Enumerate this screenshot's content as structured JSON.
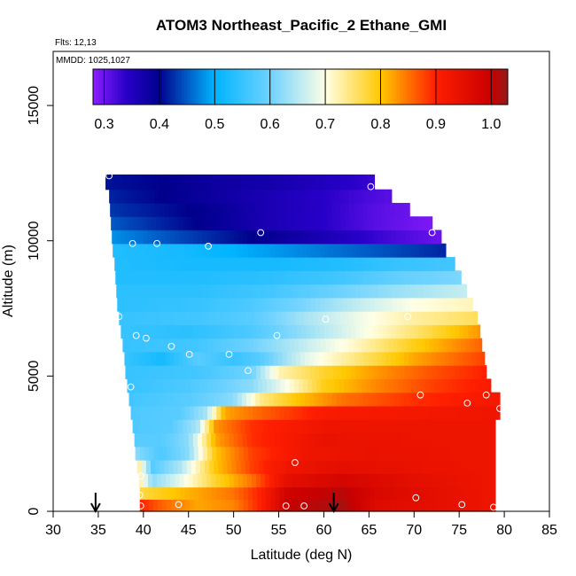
{
  "chart_data": {
    "type": "heatmap",
    "title": "ATOM3 Northeast_Pacific_2 Ethane_GMI",
    "flights_label": "Flts: 12,13",
    "date_label": "MMDD: 1025,1027",
    "xlabel": "Latitude (deg N)",
    "ylabel": "Altitude (m)",
    "xlim": [
      30,
      85
    ],
    "ylim": [
      0,
      17000
    ],
    "x_ticks": [
      "30",
      "35",
      "40",
      "45",
      "50",
      "55",
      "60",
      "65",
      "70",
      "75",
      "80",
      "85"
    ],
    "y_ticks": [
      "0",
      "5000",
      "10000",
      "15000"
    ],
    "colorbar": {
      "range": [
        0.28,
        1.03
      ],
      "ticks": [
        "0.3",
        "0.4",
        "0.5",
        "0.6",
        "0.7",
        "0.8",
        "0.9",
        "1.0"
      ],
      "placement": "top"
    },
    "grid": false,
    "observations": [
      {
        "lat": 36.2,
        "alt": 12400
      },
      {
        "lat": 65.2,
        "alt": 12000
      },
      {
        "lat": 38.8,
        "alt": 9900
      },
      {
        "lat": 41.5,
        "alt": 9900
      },
      {
        "lat": 47.2,
        "alt": 9800
      },
      {
        "lat": 53.0,
        "alt": 10300
      },
      {
        "lat": 72.0,
        "alt": 10300
      },
      {
        "lat": 37.3,
        "alt": 7200
      },
      {
        "lat": 39.2,
        "alt": 6500
      },
      {
        "lat": 40.3,
        "alt": 6400
      },
      {
        "lat": 43.1,
        "alt": 6100
      },
      {
        "lat": 45.1,
        "alt": 5800
      },
      {
        "lat": 49.5,
        "alt": 5800
      },
      {
        "lat": 54.8,
        "alt": 6500
      },
      {
        "lat": 60.2,
        "alt": 7100
      },
      {
        "lat": 69.3,
        "alt": 7200
      },
      {
        "lat": 51.6,
        "alt": 5200
      },
      {
        "lat": 38.6,
        "alt": 4600
      },
      {
        "lat": 70.7,
        "alt": 4300
      },
      {
        "lat": 75.9,
        "alt": 4000
      },
      {
        "lat": 78.0,
        "alt": 4300
      },
      {
        "lat": 79.5,
        "alt": 3800
      },
      {
        "lat": 56.8,
        "alt": 1800
      },
      {
        "lat": 39.7,
        "alt": 1300
      },
      {
        "lat": 39.6,
        "alt": 600
      },
      {
        "lat": 39.7,
        "alt": 200
      },
      {
        "lat": 43.9,
        "alt": 250
      },
      {
        "lat": 55.8,
        "alt": 200
      },
      {
        "lat": 57.8,
        "alt": 200
      },
      {
        "lat": 70.2,
        "alt": 500
      },
      {
        "lat": 75.3,
        "alt": 250
      },
      {
        "lat": 78.8,
        "alt": 150
      }
    ],
    "arrows_lat": [
      34.7,
      61.1
    ],
    "heatmap_rows": [
      {
        "alt_bottom": 0,
        "alt_top": 450,
        "lat_min": 39.6,
        "lat_max": 79.0,
        "values": [
          [
            39.6,
            0.9
          ],
          [
            42,
            0.86
          ],
          [
            46,
            0.82
          ],
          [
            50,
            0.84
          ],
          [
            53,
            0.9
          ],
          [
            56,
            1.0
          ],
          [
            62,
            1.02
          ],
          [
            66,
            0.96
          ],
          [
            72,
            0.95
          ],
          [
            79,
            0.93
          ]
        ]
      },
      {
        "alt_bottom": 450,
        "alt_top": 900,
        "lat_min": 39.6,
        "lat_max": 79.0,
        "values": [
          [
            39.6,
            0.77
          ],
          [
            42,
            0.79
          ],
          [
            46,
            0.82
          ],
          [
            50,
            0.85
          ],
          [
            53,
            0.9
          ],
          [
            56,
            0.99
          ],
          [
            62,
            1.01
          ],
          [
            66,
            0.97
          ],
          [
            72,
            0.95
          ],
          [
            79,
            0.93
          ]
        ]
      },
      {
        "alt_bottom": 900,
        "alt_top": 1400,
        "lat_min": 39.5,
        "lat_max": 79.0,
        "values": [
          [
            39.5,
            0.74
          ],
          [
            41,
            0.62
          ],
          [
            44,
            0.68
          ],
          [
            48,
            0.78
          ],
          [
            52,
            0.85
          ],
          [
            56,
            0.95
          ],
          [
            62,
            0.98
          ],
          [
            70,
            0.95
          ],
          [
            79,
            0.93
          ]
        ]
      },
      {
        "alt_bottom": 1400,
        "alt_top": 1900,
        "lat_min": 39.3,
        "lat_max": 79.0,
        "values": [
          [
            39.3,
            0.75
          ],
          [
            41,
            0.58
          ],
          [
            44,
            0.64
          ],
          [
            48,
            0.8
          ],
          [
            52,
            0.88
          ],
          [
            56,
            0.93
          ],
          [
            62,
            0.95
          ],
          [
            70,
            0.94
          ],
          [
            79,
            0.93
          ]
        ]
      },
      {
        "alt_bottom": 1900,
        "alt_top": 2400,
        "lat_min": 39.1,
        "lat_max": 79.0,
        "values": [
          [
            39.1,
            0.62
          ],
          [
            42,
            0.57
          ],
          [
            45,
            0.62
          ],
          [
            48,
            0.8
          ],
          [
            52,
            0.88
          ],
          [
            58,
            0.93
          ],
          [
            65,
            0.94
          ],
          [
            79,
            0.93
          ]
        ]
      },
      {
        "alt_bottom": 2400,
        "alt_top": 2900,
        "lat_min": 39.0,
        "lat_max": 79.0,
        "values": [
          [
            39.0,
            0.58
          ],
          [
            42,
            0.58
          ],
          [
            45,
            0.62
          ],
          [
            48,
            0.82
          ],
          [
            52,
            0.89
          ],
          [
            60,
            0.94
          ],
          [
            79,
            0.93
          ]
        ]
      },
      {
        "alt_bottom": 2900,
        "alt_top": 3400,
        "lat_min": 38.8,
        "lat_max": 79.0,
        "values": [
          [
            38.8,
            0.57
          ],
          [
            43,
            0.58
          ],
          [
            46,
            0.64
          ],
          [
            48,
            0.83
          ],
          [
            52,
            0.89
          ],
          [
            60,
            0.93
          ],
          [
            79,
            0.93
          ]
        ]
      },
      {
        "alt_bottom": 3400,
        "alt_top": 3900,
        "lat_min": 38.6,
        "lat_max": 79.5,
        "values": [
          [
            38.6,
            0.57
          ],
          [
            44,
            0.58
          ],
          [
            47,
            0.64
          ],
          [
            49,
            0.82
          ],
          [
            53,
            0.86
          ],
          [
            60,
            0.91
          ],
          [
            79.5,
            0.93
          ]
        ]
      },
      {
        "alt_bottom": 3900,
        "alt_top": 4400,
        "lat_min": 38.4,
        "lat_max": 79.5,
        "values": [
          [
            38.4,
            0.56
          ],
          [
            45,
            0.58
          ],
          [
            50,
            0.62
          ],
          [
            53,
            0.74
          ],
          [
            57,
            0.8
          ],
          [
            62,
            0.85
          ],
          [
            70,
            0.89
          ],
          [
            79.5,
            0.92
          ]
        ]
      },
      {
        "alt_bottom": 4400,
        "alt_top": 4900,
        "lat_min": 38.2,
        "lat_max": 78.5,
        "values": [
          [
            38.2,
            0.55
          ],
          [
            45,
            0.57
          ],
          [
            52,
            0.62
          ],
          [
            56,
            0.7
          ],
          [
            60,
            0.79
          ],
          [
            66,
            0.84
          ],
          [
            72,
            0.88
          ],
          [
            78.5,
            0.91
          ]
        ]
      },
      {
        "alt_bottom": 4900,
        "alt_top": 5400,
        "lat_min": 38.0,
        "lat_max": 78.0,
        "values": [
          [
            38.0,
            0.55
          ],
          [
            46,
            0.56
          ],
          [
            52,
            0.6
          ],
          [
            55,
            0.72
          ],
          [
            60,
            0.78
          ],
          [
            66,
            0.83
          ],
          [
            72,
            0.87
          ],
          [
            78,
            0.9
          ]
        ]
      },
      {
        "alt_bottom": 5400,
        "alt_top": 5900,
        "lat_min": 37.9,
        "lat_max": 77.8,
        "values": [
          [
            37.9,
            0.55
          ],
          [
            42,
            0.52
          ],
          [
            46,
            0.58
          ],
          [
            50,
            0.55
          ],
          [
            53,
            0.58
          ],
          [
            58,
            0.68
          ],
          [
            64,
            0.75
          ],
          [
            70,
            0.82
          ],
          [
            77.8,
            0.88
          ]
        ]
      },
      {
        "alt_bottom": 5900,
        "alt_top": 6400,
        "lat_min": 37.7,
        "lat_max": 77.5,
        "values": [
          [
            37.7,
            0.55
          ],
          [
            46,
            0.56
          ],
          [
            52,
            0.6
          ],
          [
            58,
            0.66
          ],
          [
            64,
            0.72
          ],
          [
            70,
            0.79
          ],
          [
            77.5,
            0.86
          ]
        ]
      },
      {
        "alt_bottom": 6400,
        "alt_top": 6900,
        "lat_min": 37.5,
        "lat_max": 77.3,
        "values": [
          [
            37.5,
            0.55
          ],
          [
            45,
            0.54
          ],
          [
            52,
            0.57
          ],
          [
            58,
            0.63
          ],
          [
            64,
            0.69
          ],
          [
            70,
            0.75
          ],
          [
            77.3,
            0.83
          ]
        ]
      },
      {
        "alt_bottom": 6900,
        "alt_top": 7400,
        "lat_min": 37.3,
        "lat_max": 77.0,
        "values": [
          [
            37.3,
            0.55
          ],
          [
            46,
            0.56
          ],
          [
            52,
            0.58
          ],
          [
            58,
            0.64
          ],
          [
            64,
            0.69
          ],
          [
            70,
            0.73
          ],
          [
            77,
            0.76
          ]
        ]
      },
      {
        "alt_bottom": 7400,
        "alt_top": 7900,
        "lat_min": 37.1,
        "lat_max": 76.5,
        "values": [
          [
            37.1,
            0.54
          ],
          [
            46,
            0.55
          ],
          [
            52,
            0.57
          ],
          [
            58,
            0.61
          ],
          [
            64,
            0.66
          ],
          [
            70,
            0.7
          ],
          [
            76.5,
            0.72
          ]
        ]
      },
      {
        "alt_bottom": 7900,
        "alt_top": 8400,
        "lat_min": 37.0,
        "lat_max": 75.8,
        "values": [
          [
            37.0,
            0.54
          ],
          [
            46,
            0.54
          ],
          [
            54,
            0.56
          ],
          [
            62,
            0.6
          ],
          [
            68,
            0.63
          ],
          [
            75.8,
            0.66
          ]
        ]
      },
      {
        "alt_bottom": 8400,
        "alt_top": 8900,
        "lat_min": 36.9,
        "lat_max": 75.2,
        "values": [
          [
            36.9,
            0.53
          ],
          [
            46,
            0.53
          ],
          [
            54,
            0.54
          ],
          [
            62,
            0.56
          ],
          [
            68,
            0.59
          ],
          [
            75.2,
            0.61
          ]
        ]
      },
      {
        "alt_bottom": 8900,
        "alt_top": 9400,
        "lat_min": 36.8,
        "lat_max": 74.5,
        "values": [
          [
            36.8,
            0.53
          ],
          [
            46,
            0.52
          ],
          [
            54,
            0.52
          ],
          [
            62,
            0.53
          ],
          [
            68,
            0.55
          ],
          [
            74.5,
            0.56
          ]
        ]
      },
      {
        "alt_bottom": 9400,
        "alt_top": 9900,
        "lat_min": 36.6,
        "lat_max": 73.5,
        "values": [
          [
            36.6,
            0.53
          ],
          [
            44,
            0.52
          ],
          [
            50,
            0.5
          ],
          [
            56,
            0.48
          ],
          [
            62,
            0.46
          ],
          [
            68,
            0.44
          ],
          [
            73.5,
            0.42
          ]
        ]
      },
      {
        "alt_bottom": 9900,
        "alt_top": 10400,
        "lat_min": 36.5,
        "lat_max": 73.0,
        "values": [
          [
            36.5,
            0.48
          ],
          [
            42,
            0.45
          ],
          [
            48,
            0.42
          ],
          [
            54,
            0.39
          ],
          [
            60,
            0.36
          ],
          [
            66,
            0.33
          ],
          [
            73,
            0.3
          ]
        ]
      },
      {
        "alt_bottom": 10400,
        "alt_top": 10900,
        "lat_min": 36.4,
        "lat_max": 72.0,
        "values": [
          [
            36.4,
            0.45
          ],
          [
            42,
            0.42
          ],
          [
            48,
            0.39
          ],
          [
            54,
            0.36
          ],
          [
            60,
            0.34
          ],
          [
            66,
            0.31
          ],
          [
            72,
            0.29
          ]
        ]
      },
      {
        "alt_bottom": 10900,
        "alt_top": 11400,
        "lat_min": 36.3,
        "lat_max": 69.5,
        "values": [
          [
            36.3,
            0.43
          ],
          [
            42,
            0.41
          ],
          [
            48,
            0.39
          ],
          [
            54,
            0.36
          ],
          [
            60,
            0.34
          ],
          [
            66,
            0.31
          ],
          [
            69.5,
            0.3
          ]
        ]
      },
      {
        "alt_bottom": 11400,
        "alt_top": 11900,
        "lat_min": 36.2,
        "lat_max": 67.5,
        "values": [
          [
            36.2,
            0.42
          ],
          [
            42,
            0.4
          ],
          [
            48,
            0.38
          ],
          [
            54,
            0.36
          ],
          [
            60,
            0.34
          ],
          [
            67.5,
            0.31
          ]
        ]
      },
      {
        "alt_bottom": 11900,
        "alt_top": 12450,
        "lat_min": 35.8,
        "lat_max": 65.6,
        "values": [
          [
            35.8,
            0.41
          ],
          [
            42,
            0.4
          ],
          [
            48,
            0.38
          ],
          [
            54,
            0.37
          ],
          [
            60,
            0.35
          ],
          [
            65.6,
            0.33
          ]
        ]
      }
    ]
  }
}
